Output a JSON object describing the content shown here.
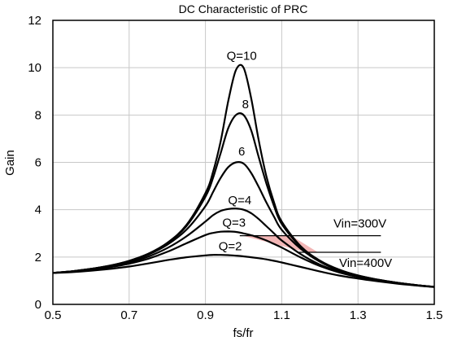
{
  "chart_data": {
    "type": "line",
    "title": "DC Characteristic of PRC",
    "xlabel": "fs/fr",
    "ylabel": "Gain",
    "xlim": [
      0.5,
      1.5
    ],
    "ylim": [
      0,
      12
    ],
    "x_ticks": [
      "0.5",
      "0.7",
      "0.9",
      "1.1",
      "1.3",
      "1.5"
    ],
    "y_ticks": [
      "0",
      "2",
      "4",
      "6",
      "8",
      "10",
      "12"
    ],
    "grid": true,
    "x": [
      0.5,
      0.55,
      0.6,
      0.65,
      0.7,
      0.75,
      0.8,
      0.85,
      0.9,
      0.92,
      0.94,
      0.96,
      0.98,
      1.0,
      1.02,
      1.04,
      1.06,
      1.08,
      1.1,
      1.15,
      1.2,
      1.25,
      1.3,
      1.35,
      1.4,
      1.45,
      1.5
    ],
    "series": [
      {
        "name": "Q=10",
        "values": [
          1.33,
          1.4,
          1.5,
          1.64,
          1.84,
          2.14,
          2.6,
          3.35,
          4.7,
          5.6,
          6.9,
          8.6,
          9.9,
          10.0,
          8.7,
          6.9,
          5.4,
          4.3,
          3.5,
          2.45,
          1.85,
          1.47,
          1.22,
          1.05,
          0.92,
          0.82,
          0.74
        ]
      },
      {
        "name": "8",
        "values": [
          1.33,
          1.4,
          1.5,
          1.64,
          1.84,
          2.13,
          2.58,
          3.3,
          4.55,
          5.35,
          6.4,
          7.45,
          8.0,
          8.0,
          7.35,
          6.2,
          5.1,
          4.15,
          3.4,
          2.42,
          1.84,
          1.46,
          1.22,
          1.05,
          0.92,
          0.82,
          0.74
        ]
      },
      {
        "name": "6",
        "values": [
          1.33,
          1.4,
          1.5,
          1.63,
          1.82,
          2.1,
          2.52,
          3.15,
          4.15,
          4.75,
          5.35,
          5.8,
          6.0,
          5.95,
          5.55,
          4.95,
          4.3,
          3.7,
          3.15,
          2.35,
          1.8,
          1.44,
          1.21,
          1.04,
          0.92,
          0.82,
          0.74
        ]
      },
      {
        "name": "Q=4",
        "values": [
          1.33,
          1.39,
          1.48,
          1.6,
          1.77,
          2.02,
          2.38,
          2.87,
          3.5,
          3.77,
          3.95,
          4.03,
          4.05,
          4.0,
          3.85,
          3.6,
          3.3,
          3.0,
          2.7,
          2.12,
          1.68,
          1.39,
          1.18,
          1.03,
          0.91,
          0.81,
          0.74
        ]
      },
      {
        "name": "Q=3",
        "values": [
          1.33,
          1.38,
          1.46,
          1.57,
          1.72,
          1.93,
          2.22,
          2.58,
          2.93,
          3.02,
          3.07,
          3.08,
          3.06,
          3.0,
          2.92,
          2.82,
          2.7,
          2.55,
          2.4,
          1.98,
          1.62,
          1.35,
          1.16,
          1.02,
          0.91,
          0.81,
          0.74
        ]
      },
      {
        "name": "Q=2",
        "values": [
          1.33,
          1.36,
          1.42,
          1.5,
          1.6,
          1.73,
          1.87,
          1.99,
          2.07,
          2.09,
          2.09,
          2.08,
          2.06,
          2.03,
          1.99,
          1.95,
          1.9,
          1.84,
          1.77,
          1.58,
          1.39,
          1.22,
          1.09,
          0.98,
          0.88,
          0.8,
          0.73
        ]
      }
    ],
    "annotations": {
      "vin_high": {
        "text": "Vin=300V",
        "gain": 2.9,
        "x_from": 0.99,
        "x_to": 1.36
      },
      "vin_low": {
        "text": "Vin=400V",
        "gain": 2.2,
        "x_from": 1.14,
        "x_to": 1.36
      },
      "shaded_region_color": "#f2b6b6"
    }
  }
}
